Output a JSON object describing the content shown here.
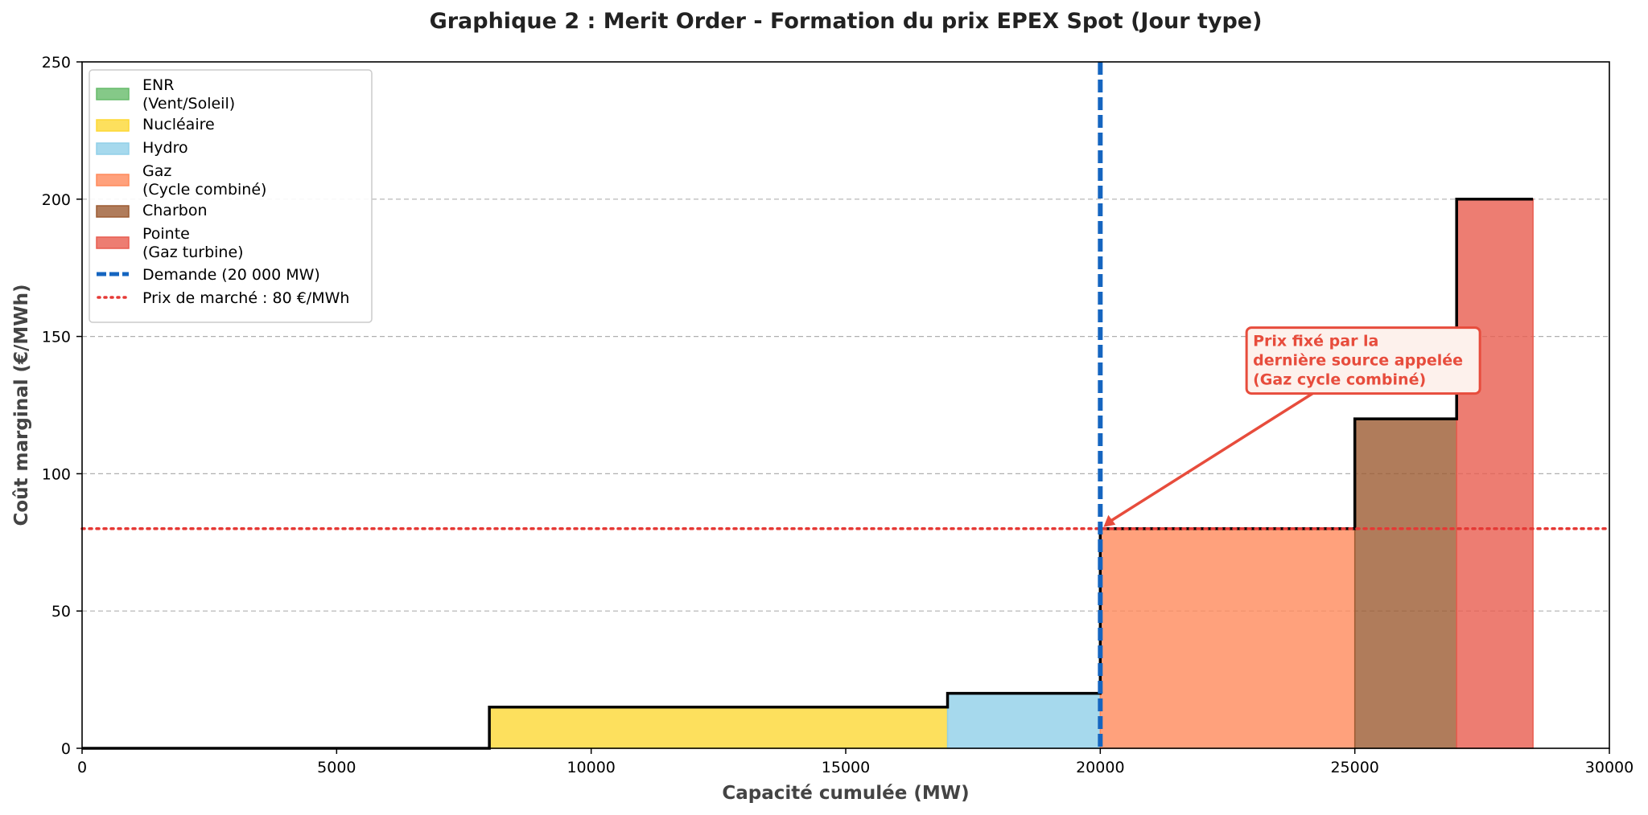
{
  "chart_data": {
    "type": "bar",
    "title": "Graphique 2 : Merit Order - Formation du prix EPEX Spot (Jour type)",
    "xlabel": "Capacité cumulée (MW)",
    "ylabel": "Coût marginal (€/MWh)",
    "xlim": [
      0,
      30000
    ],
    "ylim": [
      0,
      250
    ],
    "x_ticks": [
      "0",
      "5000",
      "10000",
      "15000",
      "20000",
      "25000",
      "30000"
    ],
    "y_ticks": [
      "0",
      "50",
      "100",
      "150",
      "200",
      "250"
    ],
    "grid": "horizontal dashed",
    "legend_position": "top-left",
    "segments": [
      {
        "name": "ENR\n(Vent/Soleil)",
        "x_start": 0,
        "x_end": 8000,
        "cost": 0,
        "color": "#66bb6a"
      },
      {
        "name": "Nucléaire",
        "x_start": 8000,
        "x_end": 17000,
        "cost": 15,
        "color": "#fdd835"
      },
      {
        "name": "Hydro",
        "x_start": 17000,
        "x_end": 20000,
        "cost": 20,
        "color": "#90cfe8"
      },
      {
        "name": "Gaz\n(Cycle combiné)",
        "x_start": 20000,
        "x_end": 25000,
        "cost": 80,
        "color": "#ff8a5b"
      },
      {
        "name": "Charbon",
        "x_start": 25000,
        "x_end": 27000,
        "cost": 120,
        "color": "#9c5b32"
      },
      {
        "name": "Pointe\n(Gaz turbine)",
        "x_start": 27000,
        "x_end": 28500,
        "cost": 200,
        "color": "#e85c4f"
      }
    ],
    "demand": {
      "label": "Demande (20 000 MW)",
      "x": 20000,
      "color": "#1565c0"
    },
    "market_price": {
      "label": "Prix de marché : 80 €/MWh",
      "y": 80,
      "color": "#e53935"
    },
    "annotation": {
      "lines": [
        "Prix fixé par la",
        "dernière source appelée",
        "(Gaz cycle combiné)"
      ],
      "point": [
        20000,
        80
      ],
      "text_anchor": [
        23000,
        138
      ],
      "color": "#e74c3c"
    }
  }
}
